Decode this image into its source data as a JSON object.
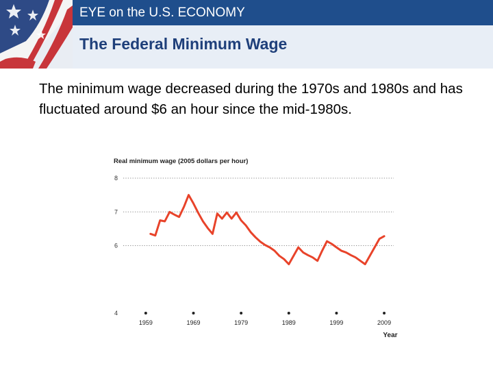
{
  "header": {
    "title": "EYE on the U.S. ECONOMY"
  },
  "slide": {
    "subtitle": "The Federal Minimum Wage",
    "body": "The minimum wage decreased during the 1970s and 1980s and has fluctuated around $6 an hour since the mid-1980s."
  },
  "colors": {
    "header_bg": "#1f4e8c",
    "subtitle_bg": "#e8eef6",
    "subtitle_text": "#1e3f7a",
    "line": "#e8432a"
  },
  "chart_data": {
    "type": "line",
    "title": "Real minimum wage (2005 dollars per hour)",
    "xlabel": "Year",
    "ylabel": "Real minimum wage (2005 dollars per hour)",
    "xlim": [
      1955,
      2011
    ],
    "ylim": [
      4,
      8
    ],
    "xticks": [
      1959,
      1969,
      1979,
      1989,
      1999,
      2009
    ],
    "yticks": [
      4,
      6,
      7,
      8
    ],
    "series": [
      {
        "name": "Real minimum wage",
        "x": [
          1960,
          1961,
          1962,
          1963,
          1964,
          1965,
          1966,
          1967,
          1968,
          1969,
          1970,
          1971,
          1972,
          1973,
          1974,
          1975,
          1976,
          1977,
          1978,
          1979,
          1980,
          1981,
          1982,
          1983,
          1984,
          1985,
          1986,
          1987,
          1988,
          1989,
          1990,
          1991,
          1992,
          1993,
          1994,
          1995,
          1996,
          1997,
          1998,
          1999,
          2000,
          2001,
          2002,
          2003,
          2004,
          2005,
          2006,
          2007,
          2008,
          2009
        ],
        "values": [
          6.35,
          6.3,
          6.75,
          6.72,
          7.0,
          6.92,
          6.85,
          7.15,
          7.5,
          7.25,
          6.97,
          6.72,
          6.52,
          6.35,
          6.95,
          6.8,
          6.98,
          6.8,
          6.98,
          6.75,
          6.6,
          6.4,
          6.25,
          6.12,
          6.02,
          5.95,
          5.85,
          5.7,
          5.6,
          5.45,
          5.7,
          5.95,
          5.8,
          5.72,
          5.65,
          5.55,
          5.85,
          6.13,
          6.05,
          5.95,
          5.85,
          5.8,
          5.72,
          5.65,
          5.55,
          5.45,
          5.7,
          5.95,
          6.2,
          6.28
        ]
      }
    ]
  }
}
